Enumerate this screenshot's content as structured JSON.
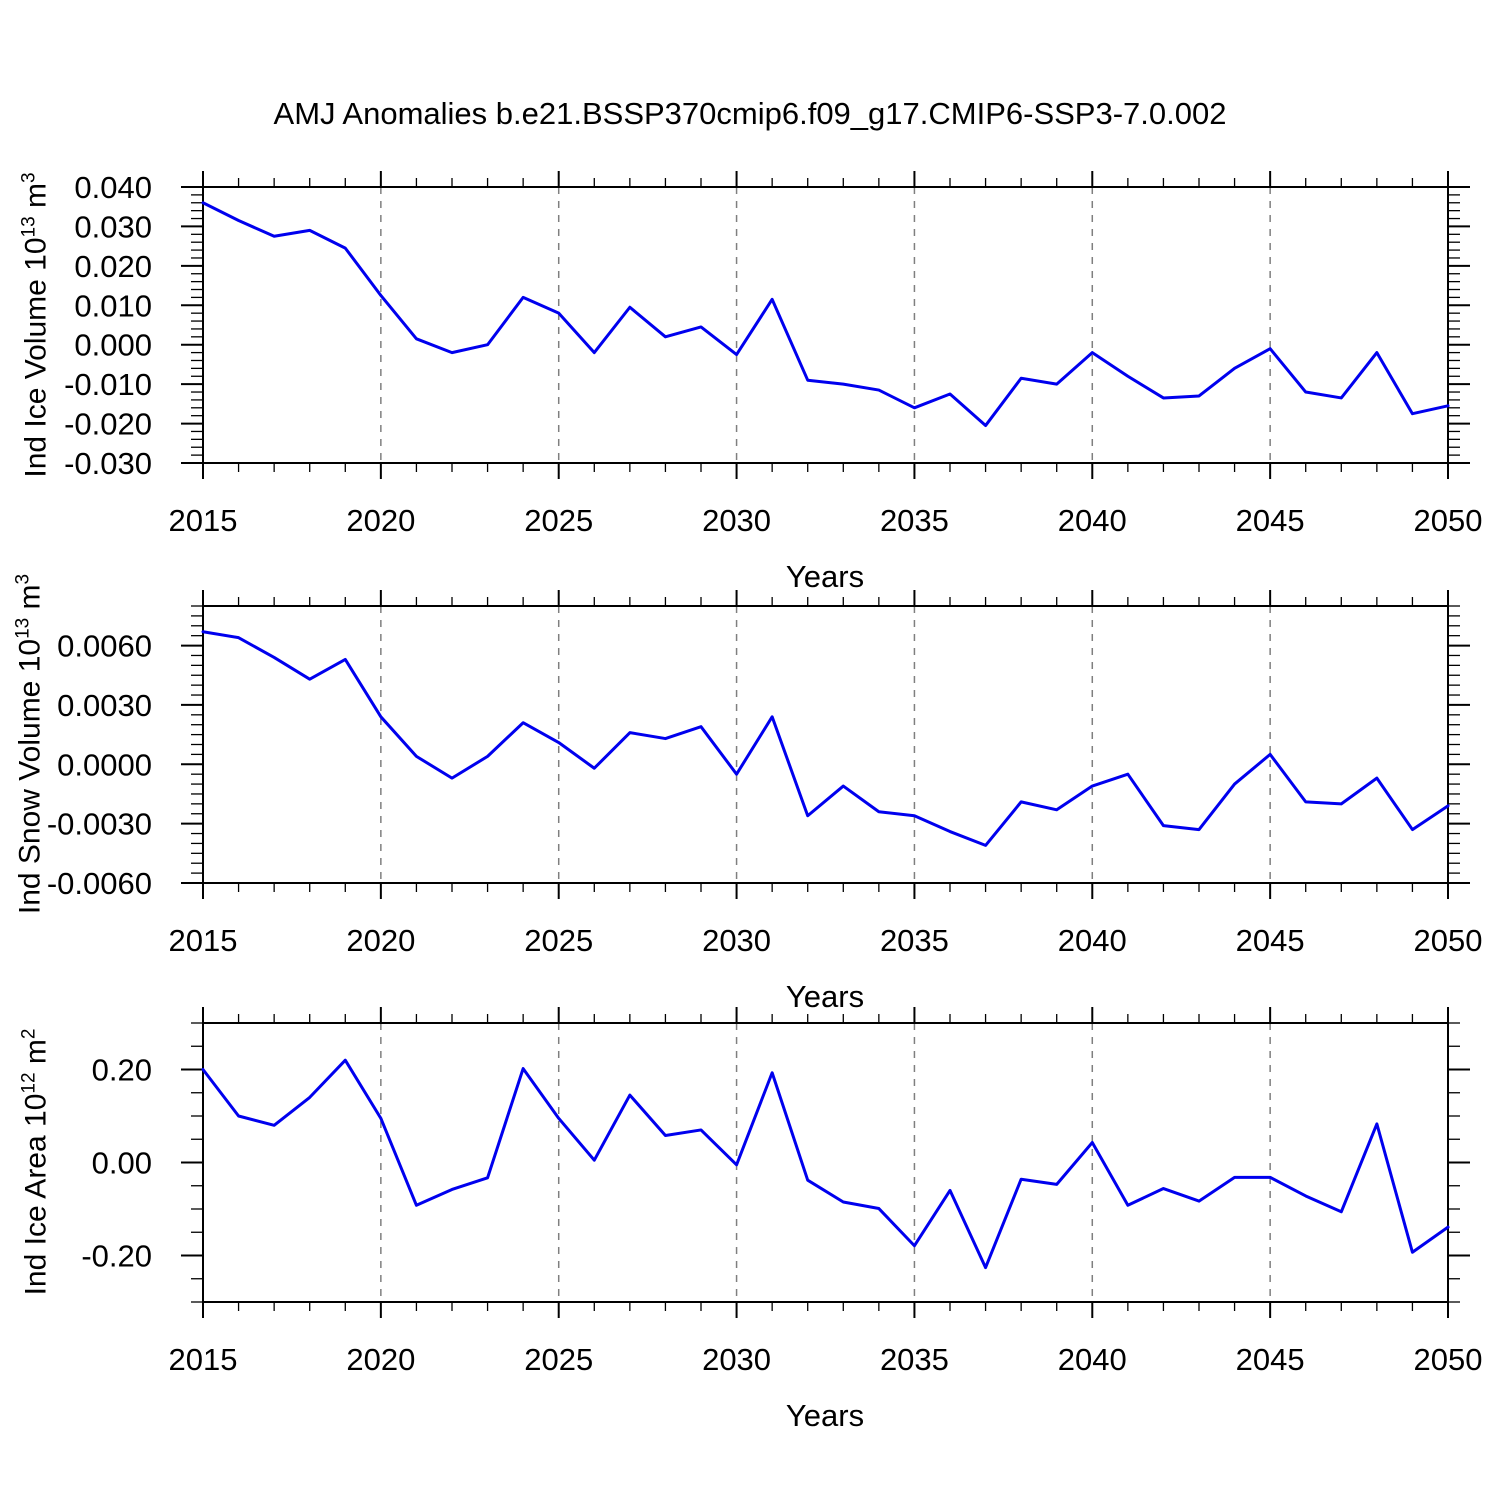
{
  "title": "AMJ Anomalies b.e21.BSSP370cmip6.f09_g17.CMIP6-SSP3-7.0.002",
  "colors": {
    "line": "#0000ee",
    "grid": "#7f7f7f",
    "axis": "#000000"
  },
  "chart_data": [
    {
      "type": "line",
      "name": "ind-ice-volume",
      "xlabel": "Years",
      "ylabel_parts": {
        "base": "Ind Ice Volume 10",
        "exp": "13",
        "unit": " m",
        "unit_exp": "3"
      },
      "xlim": [
        2015,
        2050
      ],
      "ylim": [
        -0.03,
        0.04
      ],
      "xtick_years": [
        2015,
        2020,
        2025,
        2030,
        2035,
        2040,
        2045,
        2050
      ],
      "grid_years": [
        2020,
        2025,
        2030,
        2035,
        2040,
        2045
      ],
      "ytick_values": [
        0.04,
        0.03,
        0.02,
        0.01,
        0.0,
        -0.01,
        -0.02,
        -0.03
      ],
      "ytick_labels": [
        "0.040",
        "0.030",
        "0.020",
        "0.010",
        "0.000",
        "-0.010",
        "-0.020",
        "-0.030"
      ],
      "yminor_step": 0.002,
      "legend": "none",
      "grid": "vertical-dashed",
      "x": [
        2015,
        2016,
        2017,
        2018,
        2019,
        2020,
        2021,
        2022,
        2023,
        2024,
        2025,
        2026,
        2027,
        2028,
        2029,
        2030,
        2031,
        2032,
        2033,
        2034,
        2035,
        2036,
        2037,
        2038,
        2039,
        2040,
        2041,
        2042,
        2043,
        2044,
        2045,
        2046,
        2047,
        2048,
        2049,
        2050
      ],
      "values": [
        0.036,
        0.0315,
        0.0275,
        0.029,
        0.0245,
        0.0125,
        0.0015,
        -0.002,
        0.0,
        0.012,
        0.008,
        -0.002,
        0.0095,
        0.002,
        0.0045,
        -0.0025,
        0.0115,
        -0.009,
        -0.01,
        -0.0115,
        -0.016,
        -0.0125,
        -0.0205,
        -0.0085,
        -0.01,
        -0.002,
        -0.008,
        -0.0135,
        -0.013,
        -0.006,
        -0.001,
        -0.012,
        -0.0135,
        -0.002,
        -0.0175,
        -0.0155
      ]
    },
    {
      "type": "line",
      "name": "ind-snow-volume",
      "xlabel": "Years",
      "ylabel_parts": {
        "base": "Ind Snow Volume 10",
        "exp": "13",
        "unit": " m",
        "unit_exp": "3"
      },
      "xlim": [
        2015,
        2050
      ],
      "ylim": [
        -0.006,
        0.008
      ],
      "xtick_years": [
        2015,
        2020,
        2025,
        2030,
        2035,
        2040,
        2045,
        2050
      ],
      "grid_years": [
        2020,
        2025,
        2030,
        2035,
        2040,
        2045
      ],
      "ytick_values": [
        0.006,
        0.003,
        0.0,
        -0.003,
        -0.006
      ],
      "ytick_labels": [
        "0.0060",
        "0.0030",
        "0.0000",
        "-0.0030",
        "-0.0060"
      ],
      "yminor_step": 0.0005,
      "legend": "none",
      "grid": "vertical-dashed",
      "x": [
        2015,
        2016,
        2017,
        2018,
        2019,
        2020,
        2021,
        2022,
        2023,
        2024,
        2025,
        2026,
        2027,
        2028,
        2029,
        2030,
        2031,
        2032,
        2033,
        2034,
        2035,
        2036,
        2037,
        2038,
        2039,
        2040,
        2041,
        2042,
        2043,
        2044,
        2045,
        2046,
        2047,
        2048,
        2049,
        2050
      ],
      "values": [
        0.0067,
        0.0064,
        0.0054,
        0.0043,
        0.0053,
        0.0024,
        0.0004,
        -0.0007,
        0.0004,
        0.0021,
        0.0011,
        -0.0002,
        0.0016,
        0.0013,
        0.0019,
        -0.0005,
        0.0024,
        -0.0026,
        -0.0011,
        -0.0024,
        -0.0026,
        -0.0034,
        -0.0041,
        -0.0019,
        -0.0023,
        -0.0011,
        -0.0005,
        -0.0031,
        -0.0033,
        -0.001,
        0.0005,
        -0.0019,
        -0.002,
        -0.0007,
        -0.0033,
        -0.0021
      ]
    },
    {
      "type": "line",
      "name": "ind-ice-area",
      "xlabel": "Years",
      "ylabel_parts": {
        "base": "Ind Ice Area 10",
        "exp": "12",
        "unit": " m",
        "unit_exp": "2"
      },
      "xlim": [
        2015,
        2050
      ],
      "ylim": [
        -0.3,
        0.3
      ],
      "xtick_years": [
        2015,
        2020,
        2025,
        2030,
        2035,
        2040,
        2045,
        2050
      ],
      "grid_years": [
        2020,
        2025,
        2030,
        2035,
        2040,
        2045
      ],
      "ytick_values": [
        0.2,
        0.0,
        -0.2
      ],
      "ytick_labels": [
        "0.20",
        "0.00",
        "-0.20"
      ],
      "yminor_step": 0.05,
      "legend": "none",
      "grid": "vertical-dashed",
      "x": [
        2015,
        2016,
        2017,
        2018,
        2019,
        2020,
        2021,
        2022,
        2023,
        2024,
        2025,
        2026,
        2027,
        2028,
        2029,
        2030,
        2031,
        2032,
        2033,
        2034,
        2035,
        2036,
        2037,
        2038,
        2039,
        2040,
        2041,
        2042,
        2043,
        2044,
        2045,
        2046,
        2047,
        2048,
        2049,
        2050
      ],
      "values": [
        0.2,
        0.1,
        0.08,
        0.14,
        0.22,
        0.095,
        -0.092,
        -0.058,
        -0.033,
        0.202,
        0.095,
        0.005,
        0.145,
        0.058,
        0.07,
        -0.005,
        0.193,
        -0.038,
        -0.085,
        -0.099,
        -0.179,
        -0.06,
        -0.226,
        -0.036,
        -0.047,
        0.043,
        -0.092,
        -0.056,
        -0.083,
        -0.032,
        -0.032,
        -0.072,
        -0.106,
        0.083,
        -0.193,
        -0.139
      ]
    }
  ]
}
